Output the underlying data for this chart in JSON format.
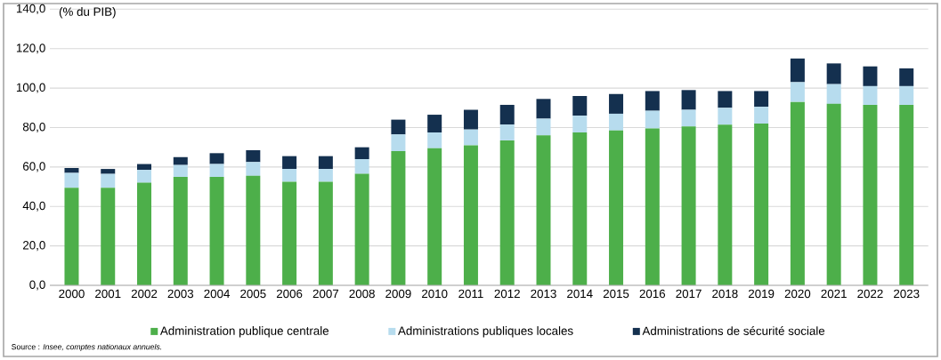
{
  "chart_data": {
    "type": "bar",
    "stacked": true,
    "ylabel": "(% du PIB)",
    "categories": [
      "2000",
      "2001",
      "2002",
      "2003",
      "2004",
      "2005",
      "2006",
      "2007",
      "2008",
      "2009",
      "2010",
      "2011",
      "2012",
      "2013",
      "2014",
      "2015",
      "2016",
      "2017",
      "2018",
      "2019",
      "2020",
      "2021",
      "2022",
      "2023"
    ],
    "series": [
      {
        "name": "Administration publique centrale",
        "color": "#4daf4a",
        "values": [
          49.5,
          49.5,
          52,
          55,
          55,
          55.5,
          52.5,
          52.5,
          56.5,
          68,
          69.5,
          71,
          73.5,
          76,
          77.5,
          78.5,
          79.5,
          80.5,
          81.5,
          82,
          93,
          92,
          91.5,
          91.5
        ]
      },
      {
        "name": "Administrations publiques locales",
        "color": "#b7dcee",
        "values": [
          7.5,
          7,
          6.5,
          6,
          6.5,
          7,
          6.5,
          6.5,
          7.5,
          8.5,
          8,
          8,
          8,
          8.5,
          8.5,
          8.5,
          9,
          8.5,
          8.5,
          8.5,
          10,
          10,
          9.5,
          9.5
        ]
      },
      {
        "name": "Administrations de sécurité sociale",
        "color": "#14304f",
        "values": [
          2.5,
          2.5,
          3,
          4,
          5.5,
          6,
          6.5,
          6.5,
          6,
          7.5,
          9,
          10,
          10,
          10,
          10,
          10,
          10,
          10,
          8.5,
          8,
          12,
          10.5,
          10,
          9
        ]
      }
    ],
    "ylim": [
      0,
      140
    ],
    "yticks": [
      {
        "value": 0,
        "label": "0,0"
      },
      {
        "value": 20,
        "label": "20,0"
      },
      {
        "value": 40,
        "label": "40,0"
      },
      {
        "value": 60,
        "label": "60,0"
      },
      {
        "value": 80,
        "label": "80,0"
      },
      {
        "value": 100,
        "label": "100,0"
      },
      {
        "value": 120,
        "label": "120,0"
      },
      {
        "value": 140,
        "label": "140,0"
      }
    ],
    "grid": "y",
    "legend": "bottom",
    "annotations": [
      "Source : *Insee, comptes nationaux annuels.*"
    ]
  }
}
